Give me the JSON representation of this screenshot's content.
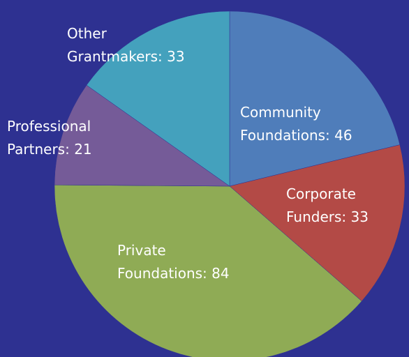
{
  "chart_data": {
    "type": "pie",
    "values": [
      46,
      33,
      84,
      21,
      33
    ],
    "value_labels": [
      "Community\nFoundations: 46",
      "Corporate\nFunders: 33",
      "Private\nFoundations: 84",
      "Professional\nPartners: 21",
      "Other\nGrantmakers: 33"
    ],
    "colors": [
      "#4f7dba",
      "#b34a46",
      "#8fab55",
      "#755b98",
      "#44a1bd"
    ]
  }
}
